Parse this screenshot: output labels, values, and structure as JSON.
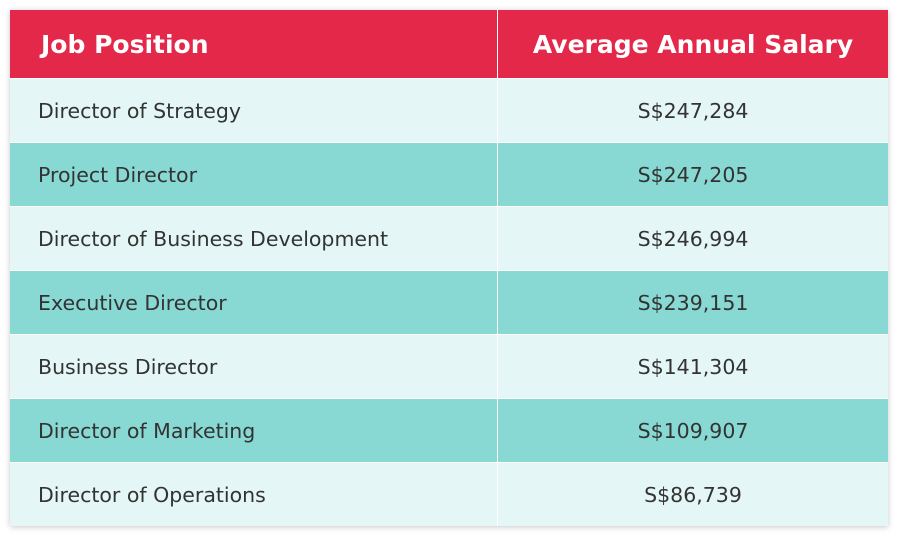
{
  "colors": {
    "header_bg": "#e3284a",
    "row_light": "#e4f6f6",
    "row_dark": "#88d8d4",
    "header_text": "#ffffff",
    "body_text": "#333333"
  },
  "table": {
    "headers": {
      "position": "Job Position",
      "salary": "Average Annual Salary"
    },
    "rows": [
      {
        "position": "Director of Strategy",
        "salary": "S$247,284"
      },
      {
        "position": "Project Director",
        "salary": "S$247,205"
      },
      {
        "position": "Director of Business Development",
        "salary": "S$246,994"
      },
      {
        "position": "Executive Director",
        "salary": "S$239,151"
      },
      {
        "position": "Business Director",
        "salary": "S$141,304"
      },
      {
        "position": "Director of Marketing",
        "salary": "S$109,907"
      },
      {
        "position": "Director of Operations",
        "salary": "S$86,739"
      }
    ]
  }
}
